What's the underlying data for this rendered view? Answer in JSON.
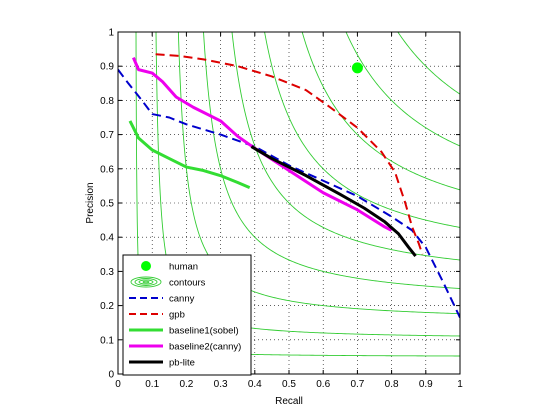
{
  "chart_data": {
    "type": "line",
    "title": "",
    "xlabel": "Recall",
    "ylabel": "Precision",
    "xlim": [
      0,
      1
    ],
    "ylim": [
      0,
      1
    ],
    "xticks": [
      0,
      0.1,
      0.2,
      0.3,
      0.4,
      0.5,
      0.6,
      0.7,
      0.8,
      0.9,
      1
    ],
    "yticks": [
      0,
      0.1,
      0.2,
      0.3,
      0.4,
      0.5,
      0.6,
      0.7,
      0.8,
      0.9,
      1
    ],
    "xtick_labels": [
      "0",
      "0.1",
      "0.2",
      "0.3",
      "0.4",
      "0.5",
      "0.6",
      "0.7",
      "0.8",
      "0.9",
      "1"
    ],
    "ytick_labels": [
      "0",
      "0.1",
      "0.2",
      "0.3",
      "0.4",
      "0.5",
      "0.6",
      "0.7",
      "0.8",
      "0.9",
      "1"
    ],
    "grid": true,
    "legend_position": "bottom-left",
    "contour_levels": [
      0.1,
      0.2,
      0.3,
      0.4,
      0.5,
      0.6,
      0.7,
      0.8,
      0.9
    ],
    "series": [
      {
        "name": "human",
        "kind": "marker",
        "color": "#00ff00",
        "points": [
          [
            0.7,
            0.895
          ]
        ]
      },
      {
        "name": "contours",
        "kind": "contours",
        "color": "#33cc33",
        "points": []
      },
      {
        "name": "canny",
        "kind": "line",
        "style": "dashed",
        "color": "#0000cc",
        "points": [
          [
            0.0,
            0.89
          ],
          [
            0.03,
            0.85
          ],
          [
            0.07,
            0.8
          ],
          [
            0.1,
            0.76
          ],
          [
            0.15,
            0.75
          ],
          [
            0.2,
            0.73
          ],
          [
            0.3,
            0.7
          ],
          [
            0.4,
            0.665
          ],
          [
            0.5,
            0.61
          ],
          [
            0.6,
            0.565
          ],
          [
            0.7,
            0.52
          ],
          [
            0.8,
            0.46
          ],
          [
            0.86,
            0.42
          ],
          [
            0.9,
            0.37
          ],
          [
            0.95,
            0.27
          ],
          [
            1.0,
            0.165
          ]
        ]
      },
      {
        "name": "gpb",
        "kind": "line",
        "style": "dashed",
        "color": "#dd0000",
        "points": [
          [
            0.11,
            0.935
          ],
          [
            0.18,
            0.93
          ],
          [
            0.25,
            0.92
          ],
          [
            0.35,
            0.9
          ],
          [
            0.45,
            0.87
          ],
          [
            0.55,
            0.83
          ],
          [
            0.62,
            0.78
          ],
          [
            0.7,
            0.72
          ],
          [
            0.77,
            0.65
          ],
          [
            0.81,
            0.59
          ],
          [
            0.84,
            0.5
          ],
          [
            0.86,
            0.43
          ],
          [
            0.88,
            0.38
          ],
          [
            0.89,
            0.35
          ]
        ]
      },
      {
        "name": "baseline1(sobel)",
        "kind": "line",
        "style": "solid",
        "color": "#33dd33",
        "points": [
          [
            0.035,
            0.74
          ],
          [
            0.06,
            0.69
          ],
          [
            0.1,
            0.655
          ],
          [
            0.15,
            0.63
          ],
          [
            0.2,
            0.605
          ],
          [
            0.25,
            0.595
          ],
          [
            0.3,
            0.58
          ],
          [
            0.35,
            0.56
          ],
          [
            0.385,
            0.545
          ]
        ]
      },
      {
        "name": "baseline2(canny)",
        "kind": "line",
        "style": "solid",
        "color": "#ee00ee",
        "points": [
          [
            0.045,
            0.925
          ],
          [
            0.06,
            0.89
          ],
          [
            0.1,
            0.88
          ],
          [
            0.13,
            0.855
          ],
          [
            0.17,
            0.81
          ],
          [
            0.22,
            0.78
          ],
          [
            0.3,
            0.74
          ],
          [
            0.35,
            0.695
          ],
          [
            0.4,
            0.66
          ],
          [
            0.5,
            0.595
          ],
          [
            0.6,
            0.53
          ],
          [
            0.7,
            0.48
          ],
          [
            0.78,
            0.43
          ],
          [
            0.8,
            0.42
          ]
        ]
      },
      {
        "name": "pb-lite",
        "kind": "line",
        "style": "solid",
        "color": "#000000",
        "points": [
          [
            0.39,
            0.665
          ],
          [
            0.45,
            0.63
          ],
          [
            0.55,
            0.58
          ],
          [
            0.65,
            0.525
          ],
          [
            0.72,
            0.485
          ],
          [
            0.78,
            0.445
          ],
          [
            0.82,
            0.41
          ],
          [
            0.85,
            0.37
          ],
          [
            0.87,
            0.345
          ]
        ]
      }
    ]
  }
}
